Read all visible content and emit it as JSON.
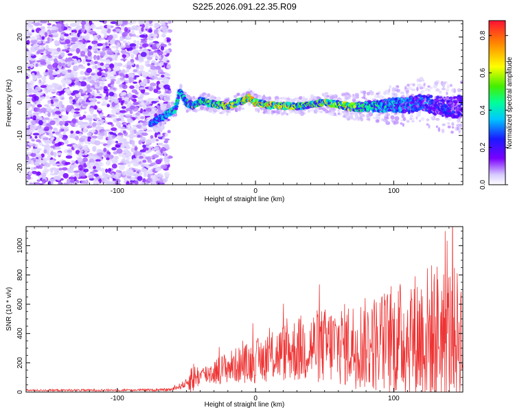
{
  "title": "S225.2026.091.22.35.R09",
  "chart_data": [
    {
      "type": "heatmap",
      "xlabel": "Height of straight line (km)",
      "ylabel": "Frequency (Hz)",
      "xlim": [
        -166,
        150
      ],
      "ylim": [
        -25,
        25
      ],
      "x_ticks": [
        -100,
        0,
        100
      ],
      "x_tick_labels": [
        "-100",
        "0",
        "100"
      ],
      "y_ticks": [
        -20,
        -10,
        0,
        10,
        20
      ],
      "y_tick_labels": [
        "-20",
        "-10",
        "0",
        "10",
        "20"
      ],
      "colorbar": {
        "label": "Normalized spectral amplitude",
        "range": [
          0.0,
          0.88
        ],
        "ticks": [
          0.0,
          0.2,
          0.4,
          0.6,
          0.8
        ],
        "tick_labels": [
          "0.0",
          "0.2",
          "0.4",
          "0.6",
          "0.8"
        ]
      },
      "noise_region_x": [
        -166,
        -62
      ],
      "ridge": {
        "x": [
          -76,
          -70,
          -64,
          -58,
          -55,
          -50,
          -45,
          -40,
          -30,
          -20,
          -10,
          -5,
          0,
          10,
          20,
          30,
          40,
          50,
          60,
          70,
          80,
          90,
          100,
          110,
          120,
          130,
          140,
          150
        ],
        "y": [
          -6.5,
          -5,
          -3.5,
          -2,
          3.5,
          0,
          -1,
          0.5,
          -0.5,
          -1,
          0.5,
          1.5,
          0,
          -0.8,
          -1,
          -1.2,
          -0.5,
          0,
          -0.5,
          -1.5,
          -1,
          -1.2,
          -0.6,
          -1,
          0.5,
          -1,
          -1.5,
          -1
        ],
        "amp": [
          0.35,
          0.4,
          0.45,
          0.5,
          0.45,
          0.5,
          0.55,
          0.55,
          0.6,
          0.75,
          0.7,
          0.85,
          0.88,
          0.8,
          0.75,
          0.65,
          0.6,
          0.7,
          0.8,
          0.65,
          0.55,
          0.5,
          0.45,
          0.4,
          0.35,
          0.3,
          0.3,
          0.3
        ]
      }
    },
    {
      "type": "line",
      "xlabel": "Height of straight line (km)",
      "ylabel": "SNR (10 * v/v)",
      "xlim": [
        -166,
        150
      ],
      "ylim": [
        0,
        1130
      ],
      "x_ticks": [
        -100,
        0,
        100
      ],
      "x_tick_labels": [
        "-100",
        "0",
        "100"
      ],
      "y_ticks": [
        0,
        200,
        400,
        600,
        800,
        1000
      ],
      "y_tick_labels": [
        "0",
        "200",
        "400",
        "600",
        "800",
        "1000"
      ],
      "color": "#ee3333",
      "envelope": {
        "x": [
          -166,
          -70,
          -60,
          -50,
          -46,
          -40,
          -30,
          -20,
          -10,
          0,
          10,
          20,
          30,
          40,
          60,
          80,
          100,
          110,
          120,
          130,
          140,
          150
        ],
        "base": [
          12,
          14,
          18,
          60,
          100,
          110,
          140,
          170,
          190,
          210,
          240,
          270,
          290,
          310,
          320,
          330,
          350,
          370,
          380,
          390,
          400,
          400
        ],
        "spread": [
          6,
          8,
          12,
          30,
          120,
          60,
          90,
          110,
          130,
          150,
          170,
          200,
          230,
          250,
          280,
          320,
          380,
          420,
          480,
          520,
          480,
          420
        ]
      }
    }
  ]
}
